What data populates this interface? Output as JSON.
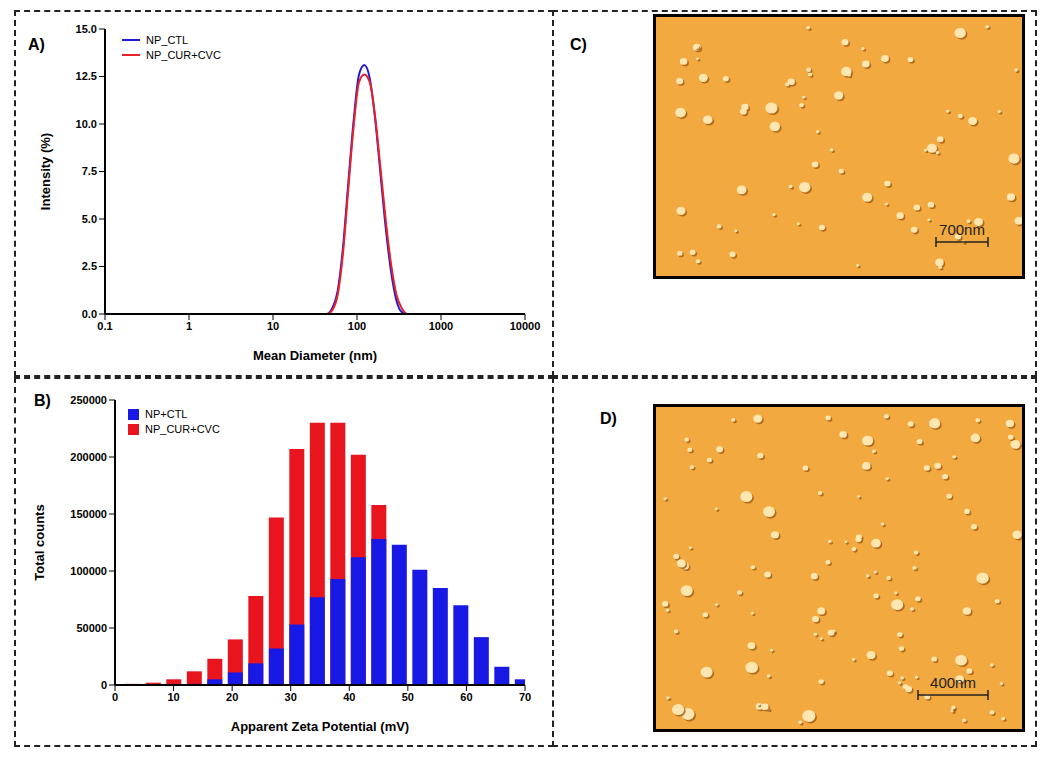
{
  "chart_data": [
    {
      "panel": "A)",
      "type": "line",
      "log": "x",
      "x_label": "Mean Diameter (nm)",
      "y_label": "Intensity (%)",
      "x": [
        0.4,
        1,
        5,
        10,
        30,
        43.8,
        50.7,
        58.8,
        68.1,
        78.8,
        91.3,
        105.7,
        122.4,
        141.8,
        164.2,
        190.1,
        220.2,
        255,
        295.3,
        342,
        396,
        1000,
        5000,
        10000
      ],
      "series": [
        {
          "name": "NP_CTL",
          "color": "#1c1cd6",
          "values": [
            0,
            0,
            0,
            0,
            0,
            0,
            0.3,
            1.2,
            3.5,
            6.9,
            10.2,
            12.6,
            13.1,
            12.4,
            10.3,
            7.4,
            4.5,
            2.2,
            0.7,
            0.1,
            0,
            0,
            0,
            0
          ]
        },
        {
          "name": "NP_CUR+CVC",
          "color": "#e8202a",
          "values": [
            0,
            0,
            0,
            0,
            0,
            0,
            0.2,
            1.0,
            3.2,
            6.6,
            9.9,
            12.2,
            12.6,
            12.2,
            10.4,
            7.7,
            4.9,
            2.6,
            1.0,
            0.3,
            0,
            0,
            0,
            0
          ]
        }
      ],
      "xlim": [
        0.1,
        10000
      ],
      "xticks": [
        0.1,
        1,
        10,
        100,
        1000,
        10000
      ],
      "ylim": [
        0,
        15
      ],
      "yticks": [
        {
          "value": 0,
          "label": "0.0"
        },
        2.5,
        {
          "value": 5,
          "label": "5.0"
        },
        7.5,
        {
          "value": 10,
          "label": "10.0"
        },
        12.5,
        {
          "value": 15,
          "label": "15.0"
        }
      ],
      "legend": "upper left",
      "grid": false
    },
    {
      "panel": "B)",
      "type": "bar",
      "stacked": false,
      "x_label": "Apparent Zeta Potential (mV)",
      "y_label": "Total counts",
      "x": [
        3,
        6.5,
        10,
        13.5,
        17,
        20.5,
        24,
        27.5,
        31,
        34.5,
        38,
        41.5,
        45,
        48.5,
        52,
        55.5,
        59,
        62.5,
        66,
        69.5
      ],
      "series": [
        {
          "name": "NP+CTL",
          "color": "#1919e6",
          "values": [
            0,
            0,
            0,
            1000,
            5000,
            11000,
            19000,
            32000,
            53000,
            77000,
            93000,
            112000,
            128000,
            123000,
            101000,
            85000,
            70000,
            42000,
            16000,
            5000
          ]
        },
        {
          "name": "NP_CUR+CVC",
          "color": "#e8141e",
          "values": [
            1000,
            2000,
            5000,
            12000,
            23000,
            40000,
            78000,
            147000,
            207000,
            230000,
            230000,
            202000,
            158000,
            0,
            0,
            0,
            0,
            0,
            0,
            0
          ]
        }
      ],
      "xlim": [
        0,
        70
      ],
      "xticks": [
        0,
        10,
        20,
        30,
        40,
        50,
        60,
        70
      ],
      "ylim": [
        0,
        250000
      ],
      "yticks": [
        0,
        50000,
        100000,
        150000,
        200000,
        250000
      ],
      "legend": "upper left",
      "grid": false
    }
  ],
  "images": [
    {
      "panel": "C)",
      "scale_bar": "700nm"
    },
    {
      "panel": "D)",
      "scale_bar": "400nm"
    }
  ]
}
